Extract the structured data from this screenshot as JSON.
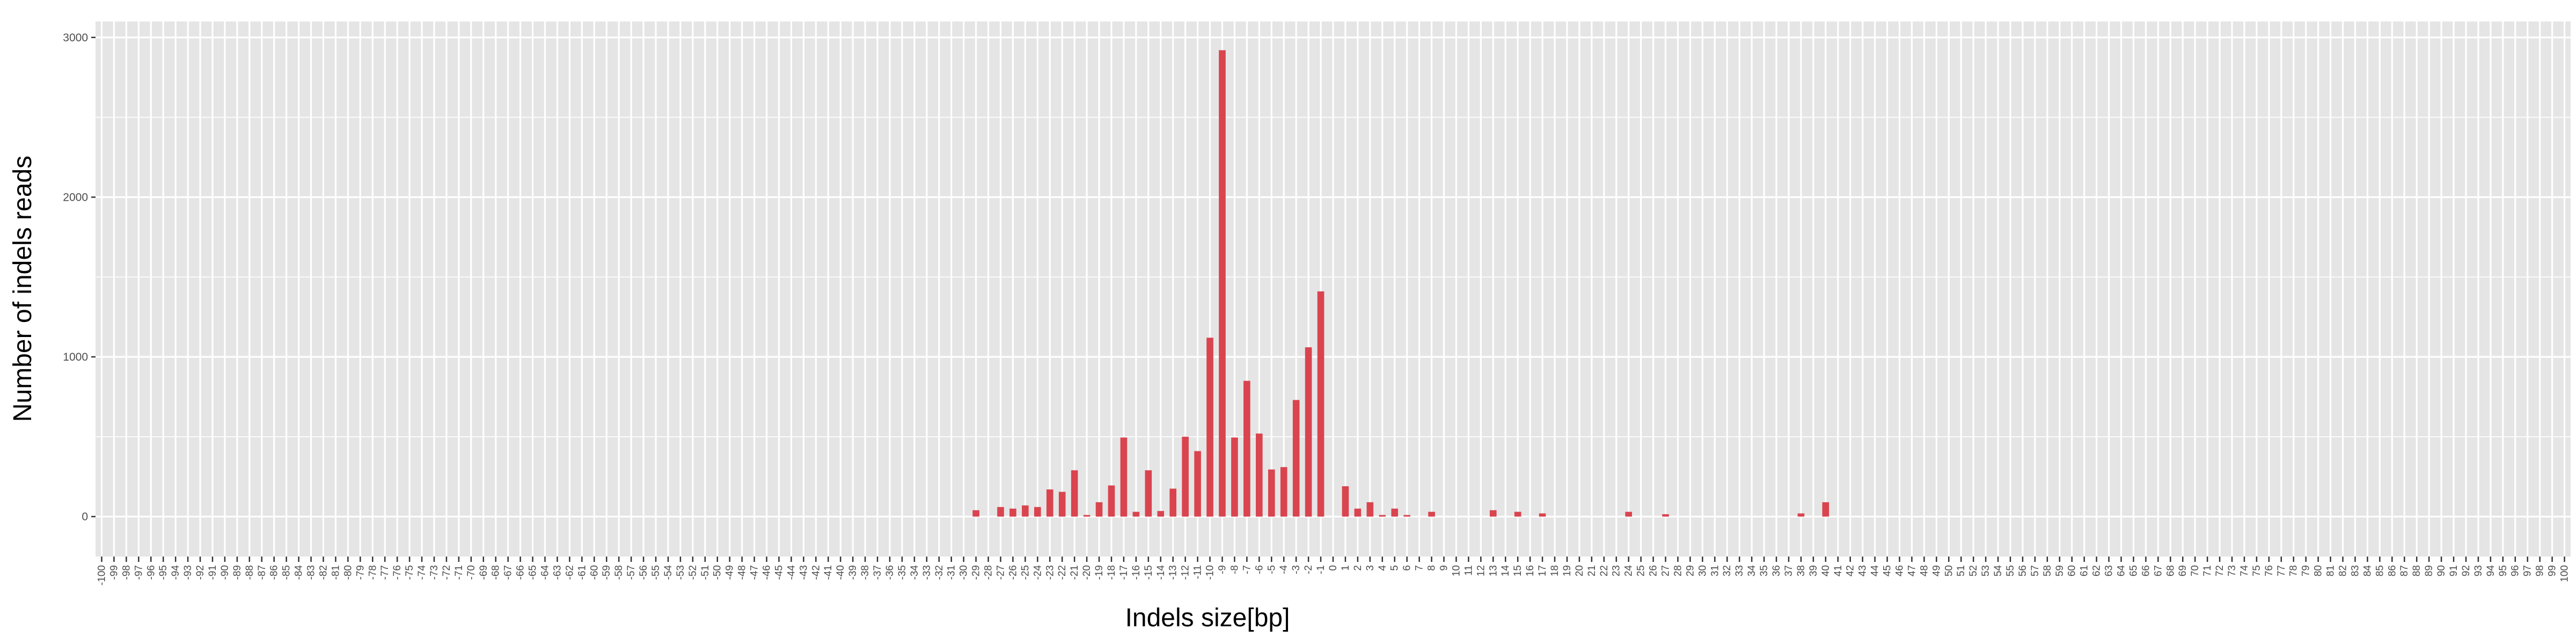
{
  "chart_data": {
    "type": "bar",
    "xlabel": "Indels size[bp]",
    "ylabel": "Number of indels reads",
    "xlim": [
      -100,
      100
    ],
    "ylim": [
      -250,
      3100
    ],
    "yticks": [
      0,
      1000,
      2000,
      3000
    ],
    "grid": true,
    "legend": "none",
    "bar_color": "#d9444f",
    "panel_color": "#e5e5e5",
    "grid_color": "#ffffff",
    "categories": [
      "-100",
      "-99",
      "-98",
      "-97",
      "-96",
      "-95",
      "-94",
      "-93",
      "-92",
      "-91",
      "-90",
      "-89",
      "-88",
      "-87",
      "-86",
      "-85",
      "-84",
      "-83",
      "-82",
      "-81",
      "-80",
      "-79",
      "-78",
      "-77",
      "-76",
      "-75",
      "-74",
      "-73",
      "-72",
      "-71",
      "-70",
      "-69",
      "-68",
      "-67",
      "-66",
      "-65",
      "-64",
      "-63",
      "-62",
      "-61",
      "-60",
      "-59",
      "-58",
      "-57",
      "-56",
      "-55",
      "-54",
      "-53",
      "-52",
      "-51",
      "-50",
      "-49",
      "-48",
      "-47",
      "-46",
      "-45",
      "-44",
      "-43",
      "-42",
      "-41",
      "-40",
      "-39",
      "-38",
      "-37",
      "-36",
      "-35",
      "-34",
      "-33",
      "-32",
      "-31",
      "-30",
      "-29",
      "-28",
      "-27",
      "-26",
      "-25",
      "-24",
      "-23",
      "-22",
      "-21",
      "-20",
      "-19",
      "-18",
      "-17",
      "-16",
      "-15",
      "-14",
      "-13",
      "-12",
      "-11",
      "-10",
      "-9",
      "-8",
      "-7",
      "-6",
      "-5",
      "-4",
      "-3",
      "-2",
      "-1",
      "0",
      "1",
      "2",
      "3",
      "4",
      "5",
      "6",
      "7",
      "8",
      "9",
      "10",
      "11",
      "12",
      "13",
      "14",
      "15",
      "16",
      "17",
      "18",
      "19",
      "20",
      "21",
      "22",
      "23",
      "24",
      "25",
      "26",
      "27",
      "28",
      "29",
      "30",
      "31",
      "32",
      "33",
      "34",
      "35",
      "36",
      "37",
      "38",
      "39",
      "40",
      "41",
      "42",
      "43",
      "44",
      "45",
      "46",
      "47",
      "48",
      "49",
      "50",
      "51",
      "52",
      "53",
      "54",
      "55",
      "56",
      "57",
      "58",
      "59",
      "60",
      "61",
      "62",
      "63",
      "64",
      "65",
      "66",
      "67",
      "68",
      "69",
      "70",
      "71",
      "72",
      "73",
      "74",
      "75",
      "76",
      "77",
      "78",
      "79",
      "80",
      "81",
      "82",
      "83",
      "84",
      "85",
      "86",
      "87",
      "88",
      "89",
      "90",
      "91",
      "92",
      "93",
      "94",
      "95",
      "96",
      "97",
      "98",
      "99",
      "100"
    ],
    "x": [
      -29,
      -27,
      -26,
      -25,
      -24,
      -23,
      -22,
      -21,
      -20,
      -19,
      -18,
      -17,
      -16,
      -15,
      -14,
      -13,
      -12,
      -11,
      -10,
      -9,
      -8,
      -7,
      -6,
      -5,
      -4,
      -3,
      -2,
      -1,
      1,
      2,
      3,
      4,
      5,
      6,
      8,
      13,
      15,
      17,
      24,
      27,
      38,
      40
    ],
    "values": [
      40,
      60,
      50,
      70,
      60,
      170,
      155,
      290,
      10,
      90,
      195,
      495,
      30,
      290,
      35,
      175,
      500,
      410,
      1120,
      2920,
      495,
      850,
      520,
      295,
      310,
      730,
      1060,
      1410,
      190,
      50,
      90,
      10,
      50,
      10,
      30,
      40,
      30,
      20,
      30,
      15,
      20,
      90
    ]
  }
}
